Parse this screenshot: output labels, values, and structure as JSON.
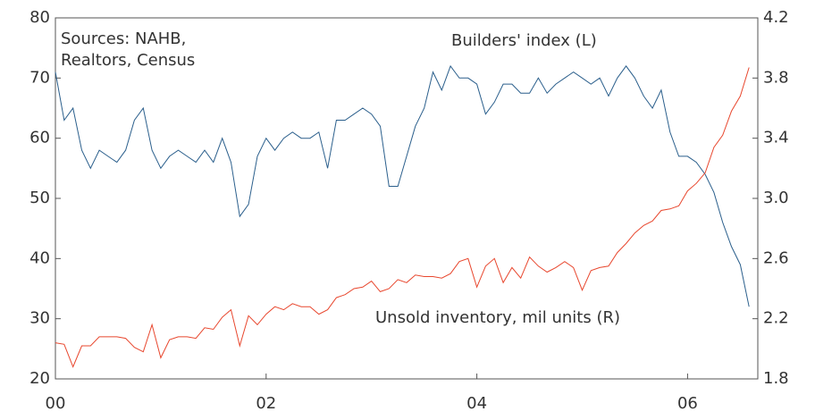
{
  "chart_data": {
    "type": "line",
    "sources": [
      "Sources: NAHB,",
      "Realtors, Census"
    ],
    "annotations": [
      "Builders' index (L)",
      "Unsold inventory, mil units (R)"
    ],
    "x": [
      0,
      1,
      2,
      3,
      4,
      5,
      6,
      7,
      8,
      9,
      10,
      11,
      12,
      13,
      14,
      15,
      16,
      17,
      18,
      19,
      20,
      21,
      22,
      23,
      24,
      25,
      26,
      27,
      28,
      29,
      30,
      31,
      32,
      33,
      34,
      35,
      36,
      37,
      38,
      39,
      40,
      41,
      42,
      43,
      44,
      45,
      46,
      47,
      48,
      49,
      50,
      51,
      52,
      53,
      54,
      55,
      56,
      57,
      58,
      59,
      60,
      61,
      62,
      63,
      64,
      65,
      66,
      67,
      68,
      69,
      70,
      71,
      72,
      73,
      74,
      75,
      76,
      77,
      78,
      79
    ],
    "xlim": [
      0,
      80
    ],
    "xticks": [
      {
        "value": 0,
        "label": "00"
      },
      {
        "value": 24,
        "label": "02"
      },
      {
        "value": 48,
        "label": "04"
      },
      {
        "value": 72,
        "label": "06"
      }
    ],
    "ylim": [
      20,
      80
    ],
    "yticks": [
      20,
      30,
      40,
      50,
      60,
      70,
      80
    ],
    "y2lim": [
      1.8,
      4.2
    ],
    "y2ticks": [
      {
        "value": 1.8,
        "label": "1.8"
      },
      {
        "value": 2.2,
        "label": "2.2"
      },
      {
        "value": 2.6,
        "label": "2.6"
      },
      {
        "value": 3.0,
        "label": "3.0"
      },
      {
        "value": 3.4,
        "label": "3.4"
      },
      {
        "value": 3.8,
        "label": "3.8"
      },
      {
        "value": 4.2,
        "label": "4.2"
      }
    ],
    "series": [
      {
        "name": "Builders' index",
        "color": "#2b5f8c",
        "axis": "y",
        "values": [
          71,
          63,
          65,
          58,
          55,
          58,
          57,
          56,
          58,
          63,
          65,
          58,
          55,
          57,
          58,
          57,
          56,
          58,
          56,
          60,
          56,
          47,
          49,
          57,
          60,
          58,
          60,
          61,
          60,
          60,
          61,
          55,
          63,
          63,
          64,
          65,
          64,
          62,
          52,
          52,
          57,
          62,
          65,
          71,
          68,
          72,
          70,
          70,
          69,
          64,
          66,
          69,
          69,
          67.5,
          67.5,
          70,
          67.5,
          69,
          70,
          71,
          70,
          69,
          70,
          67,
          70,
          72,
          70,
          67,
          65,
          68,
          61,
          57,
          57,
          56,
          54,
          51,
          46,
          42,
          39,
          32
        ]
      },
      {
        "name": "Unsold inventory",
        "color": "#e8472e",
        "axis": "y2",
        "values": [
          2.04,
          2.03,
          1.88,
          2.02,
          2.02,
          2.08,
          2.08,
          2.08,
          2.07,
          2.01,
          1.98,
          2.16,
          1.94,
          2.06,
          2.08,
          2.08,
          2.07,
          2.14,
          2.13,
          2.21,
          2.26,
          2.02,
          2.22,
          2.16,
          2.23,
          2.28,
          2.26,
          2.3,
          2.28,
          2.28,
          2.23,
          2.26,
          2.34,
          2.36,
          2.4,
          2.41,
          2.45,
          2.38,
          2.4,
          2.46,
          2.44,
          2.49,
          2.48,
          2.48,
          2.47,
          2.5,
          2.58,
          2.6,
          2.41,
          2.55,
          2.6,
          2.44,
          2.54,
          2.47,
          2.61,
          2.55,
          2.51,
          2.54,
          2.58,
          2.54,
          2.39,
          2.52,
          2.54,
          2.55,
          2.64,
          2.7,
          2.77,
          2.82,
          2.85,
          2.92,
          2.93,
          2.95,
          3.05,
          3.1,
          3.17,
          3.34,
          3.42,
          3.58,
          3.68,
          3.87
        ]
      }
    ]
  }
}
